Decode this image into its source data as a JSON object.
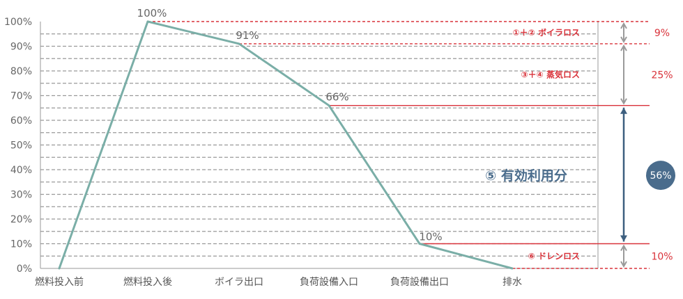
{
  "chart_data": {
    "type": "line",
    "categories": [
      "燃料投入前",
      "燃料投入後",
      "ボイラ出口",
      "負荷設備入口",
      "負荷設備出口",
      "排水"
    ],
    "series": [
      {
        "values": [
          0,
          100,
          91,
          66,
          10,
          0
        ],
        "color": "#7aaea7"
      }
    ],
    "point_labels": [
      {
        "index": 1,
        "text": "100%"
      },
      {
        "index": 2,
        "text": "91%"
      },
      {
        "index": 3,
        "text": "66%"
      },
      {
        "index": 4,
        "text": "10%"
      }
    ],
    "y_ticks": [
      "0%",
      "10%",
      "20%",
      "30%",
      "40%",
      "50%",
      "60%",
      "70%",
      "80%",
      "90%",
      "100%"
    ],
    "ylim": [
      0,
      100
    ],
    "grid": true,
    "reference_lines": [
      100,
      91,
      66,
      10,
      0
    ],
    "losses": [
      {
        "label": "①＋② ボイラロス",
        "from": 91,
        "to": 100,
        "pct": "9%"
      },
      {
        "label": "③＋④ 蒸気ロス",
        "from": 66,
        "to": 91,
        "pct": "25%"
      },
      {
        "label": "⑥ ドレンロス",
        "from": 0,
        "to": 10,
        "pct": "10%"
      }
    ],
    "useful": {
      "label": "⑤ 有効利用分",
      "from": 10,
      "to": 66,
      "pct": "56%"
    },
    "colors": {
      "line": "#7aaea7",
      "loss_red": "#d9323a",
      "grid": "#999999",
      "bracket_gray": "#9a9a9a",
      "useful_blue": "#3d5f7f",
      "badge": "#4a6c8c"
    }
  }
}
